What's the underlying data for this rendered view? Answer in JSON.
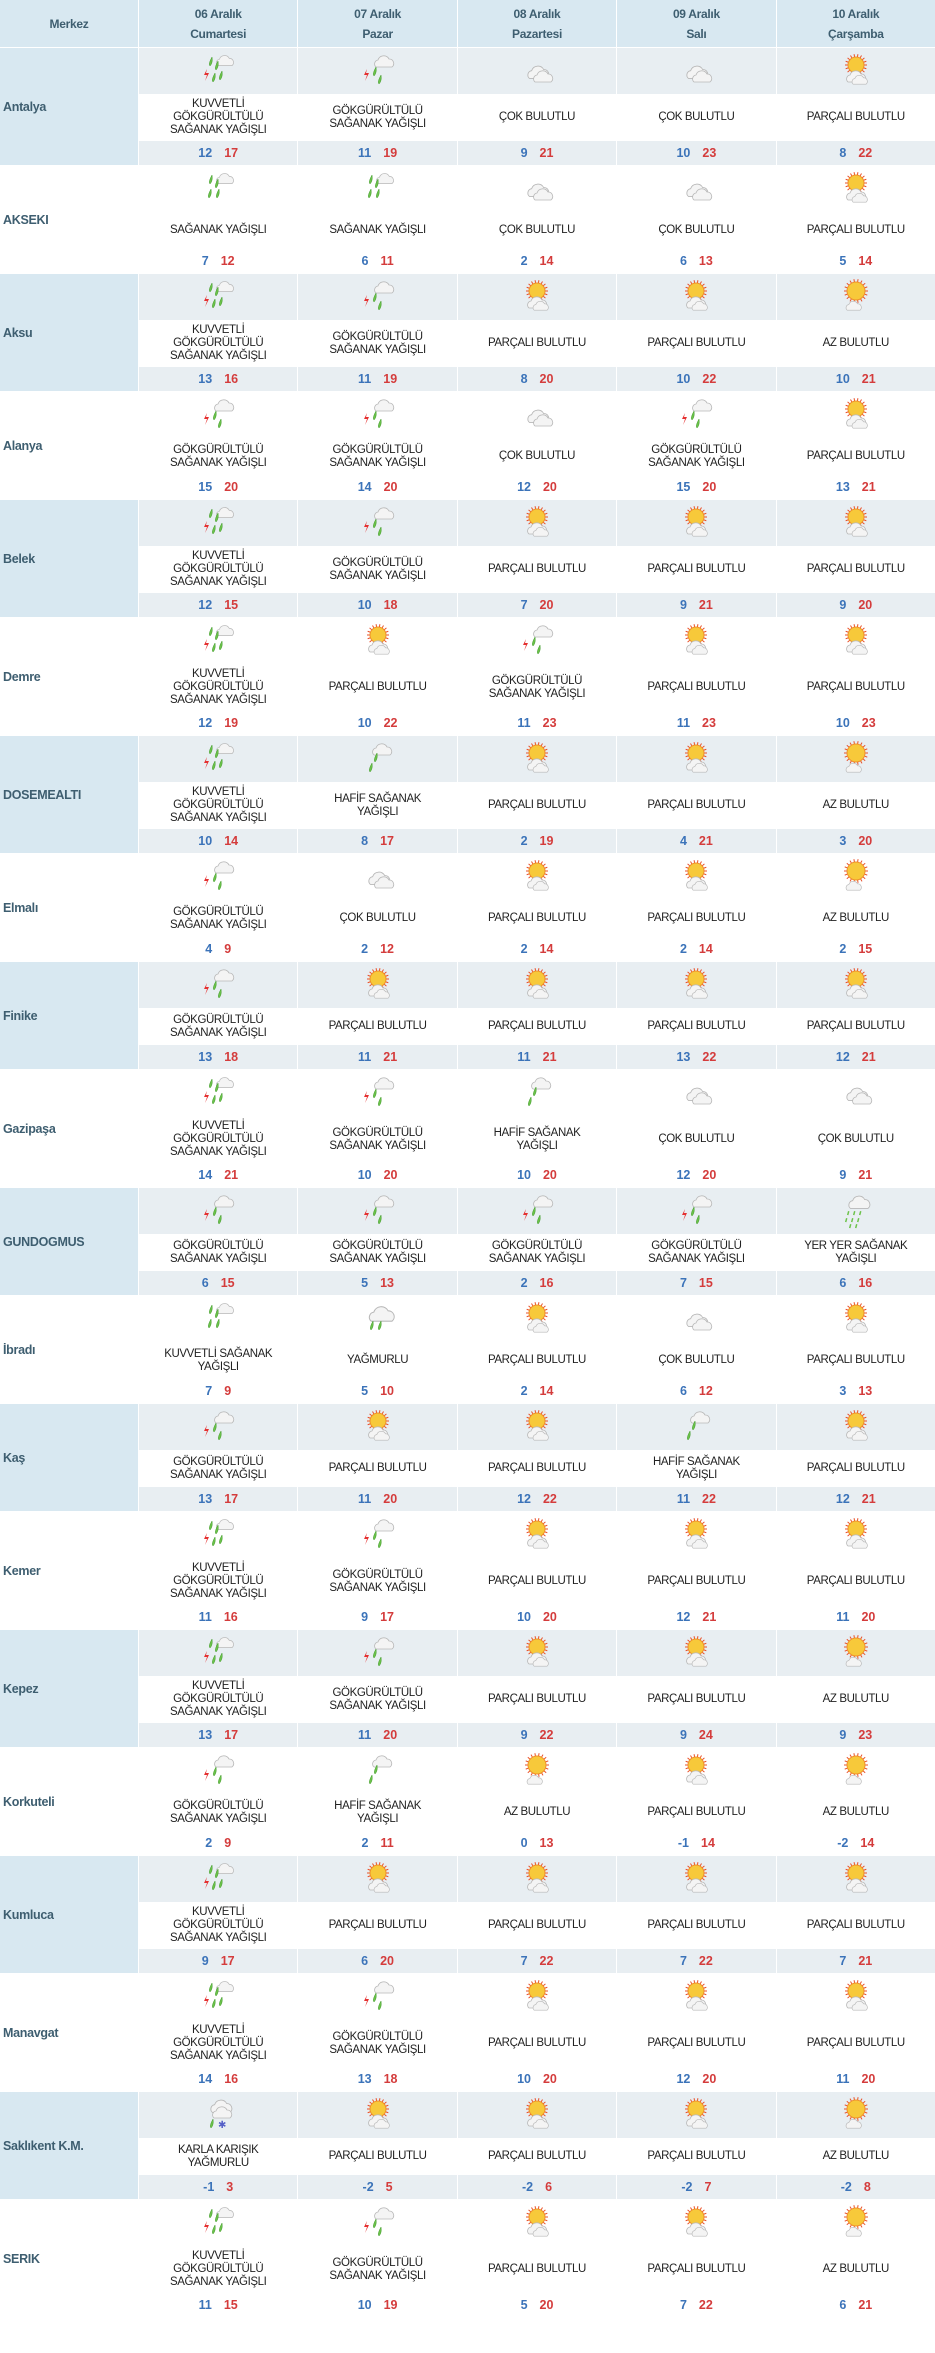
{
  "colors": {
    "header_bg": "#d8e8f1",
    "band_bg": "#e8eef2",
    "low": "#3b73b9",
    "high": "#d43c3c"
  },
  "header": {
    "merkez": "Merkez",
    "days": [
      {
        "date": "06 Aralık",
        "day": "Cumartesi"
      },
      {
        "date": "07 Aralık",
        "day": "Pazar"
      },
      {
        "date": "08 Aralık",
        "day": "Pazartesi"
      },
      {
        "date": "09 Aralık",
        "day": "Salı"
      },
      {
        "date": "10 Aralık",
        "day": "Çarşamba"
      }
    ]
  },
  "rows": [
    {
      "name": "Antalya",
      "f": [
        {
          "i": "storm-heavy",
          "d": "KUVVETLİ GÖKGÜRÜLTÜLÜ SAĞANAK YAĞIŞLI",
          "lo": "12",
          "hi": "17"
        },
        {
          "i": "storm",
          "d": "GÖKGÜRÜLTÜLÜ SAĞANAK YAĞIŞLI",
          "lo": "11",
          "hi": "19"
        },
        {
          "i": "cloudy",
          "d": "ÇOK BULUTLU",
          "lo": "9",
          "hi": "21"
        },
        {
          "i": "cloudy",
          "d": "ÇOK BULUTLU",
          "lo": "10",
          "hi": "23"
        },
        {
          "i": "partly",
          "d": "PARÇALI BULUTLU",
          "lo": "8",
          "hi": "22"
        }
      ]
    },
    {
      "name": "AKSEKI",
      "f": [
        {
          "i": "shower",
          "d": "SAĞANAK YAĞIŞLI",
          "lo": "7",
          "hi": "12"
        },
        {
          "i": "shower",
          "d": "SAĞANAK YAĞIŞLI",
          "lo": "6",
          "hi": "11"
        },
        {
          "i": "cloudy",
          "d": "ÇOK BULUTLU",
          "lo": "2",
          "hi": "14"
        },
        {
          "i": "cloudy",
          "d": "ÇOK BULUTLU",
          "lo": "6",
          "hi": "13"
        },
        {
          "i": "partly",
          "d": "PARÇALI BULUTLU",
          "lo": "5",
          "hi": "14"
        }
      ]
    },
    {
      "name": "Aksu",
      "f": [
        {
          "i": "storm-heavy",
          "d": "KUVVETLİ GÖKGÜRÜLTÜLÜ SAĞANAK YAĞIŞLI",
          "lo": "13",
          "hi": "16"
        },
        {
          "i": "storm",
          "d": "GÖKGÜRÜLTÜLÜ SAĞANAK YAĞIŞLI",
          "lo": "11",
          "hi": "19"
        },
        {
          "i": "partly",
          "d": "PARÇALI BULUTLU",
          "lo": "8",
          "hi": "20"
        },
        {
          "i": "partly",
          "d": "PARÇALI BULUTLU",
          "lo": "10",
          "hi": "22"
        },
        {
          "i": "few",
          "d": "AZ BULUTLU",
          "lo": "10",
          "hi": "21"
        }
      ]
    },
    {
      "name": "Alanya",
      "f": [
        {
          "i": "storm",
          "d": "GÖKGÜRÜLTÜLÜ SAĞANAK YAĞIŞLI",
          "lo": "15",
          "hi": "20"
        },
        {
          "i": "storm",
          "d": "GÖKGÜRÜLTÜLÜ SAĞANAK YAĞIŞLI",
          "lo": "14",
          "hi": "20"
        },
        {
          "i": "cloudy",
          "d": "ÇOK BULUTLU",
          "lo": "12",
          "hi": "20"
        },
        {
          "i": "storm",
          "d": "GÖKGÜRÜLTÜLÜ SAĞANAK YAĞIŞLI",
          "lo": "15",
          "hi": "20"
        },
        {
          "i": "partly",
          "d": "PARÇALI BULUTLU",
          "lo": "13",
          "hi": "21"
        }
      ]
    },
    {
      "name": "Belek",
      "f": [
        {
          "i": "storm-heavy",
          "d": "KUVVETLİ GÖKGÜRÜLTÜLÜ SAĞANAK YAĞIŞLI",
          "lo": "12",
          "hi": "15"
        },
        {
          "i": "storm",
          "d": "GÖKGÜRÜLTÜLÜ SAĞANAK YAĞIŞLI",
          "lo": "10",
          "hi": "18"
        },
        {
          "i": "partly",
          "d": "PARÇALI BULUTLU",
          "lo": "7",
          "hi": "20"
        },
        {
          "i": "partly",
          "d": "PARÇALI BULUTLU",
          "lo": "9",
          "hi": "21"
        },
        {
          "i": "partly",
          "d": "PARÇALI BULUTLU",
          "lo": "9",
          "hi": "20"
        }
      ]
    },
    {
      "name": "Demre",
      "f": [
        {
          "i": "storm-heavy",
          "d": "KUVVETLİ GÖKGÜRÜLTÜLÜ SAĞANAK YAĞIŞLI",
          "lo": "12",
          "hi": "19"
        },
        {
          "i": "partly",
          "d": "PARÇALI BULUTLU",
          "lo": "10",
          "hi": "22"
        },
        {
          "i": "storm",
          "d": "GÖKGÜRÜLTÜLÜ SAĞANAK YAĞIŞLI",
          "lo": "11",
          "hi": "23"
        },
        {
          "i": "partly",
          "d": "PARÇALI BULUTLU",
          "lo": "11",
          "hi": "23"
        },
        {
          "i": "partly",
          "d": "PARÇALI BULUTLU",
          "lo": "10",
          "hi": "23"
        }
      ]
    },
    {
      "name": "DOSEMEALTI",
      "f": [
        {
          "i": "storm-heavy",
          "d": "KUVVETLİ GÖKGÜRÜLTÜLÜ SAĞANAK YAĞIŞLI",
          "lo": "10",
          "hi": "14"
        },
        {
          "i": "light-shower",
          "d": "HAFİF SAĞANAK YAĞIŞLI",
          "lo": "8",
          "hi": "17"
        },
        {
          "i": "partly",
          "d": "PARÇALI BULUTLU",
          "lo": "2",
          "hi": "19"
        },
        {
          "i": "partly",
          "d": "PARÇALI BULUTLU",
          "lo": "4",
          "hi": "21"
        },
        {
          "i": "few",
          "d": "AZ BULUTLU",
          "lo": "3",
          "hi": "20"
        }
      ]
    },
    {
      "name": "Elmalı",
      "f": [
        {
          "i": "storm",
          "d": "GÖKGÜRÜLTÜLÜ SAĞANAK YAĞIŞLI",
          "lo": "4",
          "hi": "9"
        },
        {
          "i": "cloudy",
          "d": "ÇOK BULUTLU",
          "lo": "2",
          "hi": "12"
        },
        {
          "i": "partly",
          "d": "PARÇALI BULUTLU",
          "lo": "2",
          "hi": "14"
        },
        {
          "i": "partly",
          "d": "PARÇALI BULUTLU",
          "lo": "2",
          "hi": "14"
        },
        {
          "i": "few",
          "d": "AZ BULUTLU",
          "lo": "2",
          "hi": "15"
        }
      ]
    },
    {
      "name": "Finike",
      "f": [
        {
          "i": "storm",
          "d": "GÖKGÜRÜLTÜLÜ SAĞANAK YAĞIŞLI",
          "lo": "13",
          "hi": "18"
        },
        {
          "i": "partly",
          "d": "PARÇALI BULUTLU",
          "lo": "11",
          "hi": "21"
        },
        {
          "i": "partly",
          "d": "PARÇALI BULUTLU",
          "lo": "11",
          "hi": "21"
        },
        {
          "i": "partly",
          "d": "PARÇALI BULUTLU",
          "lo": "13",
          "hi": "22"
        },
        {
          "i": "partly",
          "d": "PARÇALI BULUTLU",
          "lo": "12",
          "hi": "21"
        }
      ]
    },
    {
      "name": "Gazipaşa",
      "f": [
        {
          "i": "storm-heavy",
          "d": "KUVVETLİ GÖKGÜRÜLTÜLÜ SAĞANAK YAĞIŞLI",
          "lo": "14",
          "hi": "21"
        },
        {
          "i": "storm",
          "d": "GÖKGÜRÜLTÜLÜ SAĞANAK YAĞIŞLI",
          "lo": "10",
          "hi": "20"
        },
        {
          "i": "light-shower",
          "d": "HAFİF SAĞANAK YAĞIŞLI",
          "lo": "10",
          "hi": "20"
        },
        {
          "i": "cloudy",
          "d": "ÇOK BULUTLU",
          "lo": "12",
          "hi": "20"
        },
        {
          "i": "cloudy",
          "d": "ÇOK BULUTLU",
          "lo": "9",
          "hi": "21"
        }
      ]
    },
    {
      "name": "GUNDOGMUS",
      "f": [
        {
          "i": "storm",
          "d": "GÖKGÜRÜLTÜLÜ SAĞANAK YAĞIŞLI",
          "lo": "6",
          "hi": "15"
        },
        {
          "i": "storm",
          "d": "GÖKGÜRÜLTÜLÜ SAĞANAK YAĞIŞLI",
          "lo": "5",
          "hi": "13"
        },
        {
          "i": "storm",
          "d": "GÖKGÜRÜLTÜLÜ SAĞANAK YAĞIŞLI",
          "lo": "2",
          "hi": "16"
        },
        {
          "i": "storm",
          "d": "GÖKGÜRÜLTÜLÜ SAĞANAK YAĞIŞLI",
          "lo": "7",
          "hi": "15"
        },
        {
          "i": "scattered-shower",
          "d": "YER YER SAĞANAK YAĞIŞLI",
          "lo": "6",
          "hi": "16"
        }
      ]
    },
    {
      "name": "İbradı",
      "f": [
        {
          "i": "shower-heavy",
          "d": "KUVVETLİ SAĞANAK YAĞIŞLI",
          "lo": "7",
          "hi": "9"
        },
        {
          "i": "rain",
          "d": "YAĞMURLU",
          "lo": "5",
          "hi": "10"
        },
        {
          "i": "partly",
          "d": "PARÇALI BULUTLU",
          "lo": "2",
          "hi": "14"
        },
        {
          "i": "cloudy",
          "d": "ÇOK BULUTLU",
          "lo": "6",
          "hi": "12"
        },
        {
          "i": "partly",
          "d": "PARÇALI BULUTLU",
          "lo": "3",
          "hi": "13"
        }
      ]
    },
    {
      "name": "Kaş",
      "f": [
        {
          "i": "storm",
          "d": "GÖKGÜRÜLTÜLÜ SAĞANAK YAĞIŞLI",
          "lo": "13",
          "hi": "17"
        },
        {
          "i": "partly",
          "d": "PARÇALI BULUTLU",
          "lo": "11",
          "hi": "20"
        },
        {
          "i": "partly",
          "d": "PARÇALI BULUTLU",
          "lo": "12",
          "hi": "22"
        },
        {
          "i": "light-shower",
          "d": "HAFİF SAĞANAK YAĞIŞLI",
          "lo": "11",
          "hi": "22"
        },
        {
          "i": "partly",
          "d": "PARÇALI BULUTLU",
          "lo": "12",
          "hi": "21"
        }
      ]
    },
    {
      "name": "Kemer",
      "f": [
        {
          "i": "storm-heavy",
          "d": "KUVVETLİ GÖKGÜRÜLTÜLÜ SAĞANAK YAĞIŞLI",
          "lo": "11",
          "hi": "16"
        },
        {
          "i": "storm",
          "d": "GÖKGÜRÜLTÜLÜ SAĞANAK YAĞIŞLI",
          "lo": "9",
          "hi": "17"
        },
        {
          "i": "partly",
          "d": "PARÇALI BULUTLU",
          "lo": "10",
          "hi": "20"
        },
        {
          "i": "partly",
          "d": "PARÇALI BULUTLU",
          "lo": "12",
          "hi": "21"
        },
        {
          "i": "partly",
          "d": "PARÇALI BULUTLU",
          "lo": "11",
          "hi": "20"
        }
      ]
    },
    {
      "name": "Kepez",
      "f": [
        {
          "i": "storm-heavy",
          "d": "KUVVETLİ GÖKGÜRÜLTÜLÜ SAĞANAK YAĞIŞLI",
          "lo": "13",
          "hi": "17"
        },
        {
          "i": "storm",
          "d": "GÖKGÜRÜLTÜLÜ SAĞANAK YAĞIŞLI",
          "lo": "11",
          "hi": "20"
        },
        {
          "i": "partly",
          "d": "PARÇALI BULUTLU",
          "lo": "9",
          "hi": "22"
        },
        {
          "i": "partly",
          "d": "PARÇALI BULUTLU",
          "lo": "9",
          "hi": "24"
        },
        {
          "i": "few",
          "d": "AZ BULUTLU",
          "lo": "9",
          "hi": "23"
        }
      ]
    },
    {
      "name": "Korkuteli",
      "f": [
        {
          "i": "storm",
          "d": "GÖKGÜRÜLTÜLÜ SAĞANAK YAĞIŞLI",
          "lo": "2",
          "hi": "9"
        },
        {
          "i": "light-shower",
          "d": "HAFİF SAĞANAK YAĞIŞLI",
          "lo": "2",
          "hi": "11"
        },
        {
          "i": "few",
          "d": "AZ BULUTLU",
          "lo": "0",
          "hi": "13"
        },
        {
          "i": "partly",
          "d": "PARÇALI BULUTLU",
          "lo": "-1",
          "hi": "14"
        },
        {
          "i": "few",
          "d": "AZ BULUTLU",
          "lo": "-2",
          "hi": "14"
        }
      ]
    },
    {
      "name": "Kumluca",
      "f": [
        {
          "i": "storm-heavy",
          "d": "KUVVETLİ GÖKGÜRÜLTÜLÜ SAĞANAK YAĞIŞLI",
          "lo": "9",
          "hi": "17"
        },
        {
          "i": "partly",
          "d": "PARÇALI BULUTLU",
          "lo": "6",
          "hi": "20"
        },
        {
          "i": "partly",
          "d": "PARÇALI BULUTLU",
          "lo": "7",
          "hi": "22"
        },
        {
          "i": "partly",
          "d": "PARÇALI BULUTLU",
          "lo": "7",
          "hi": "22"
        },
        {
          "i": "partly",
          "d": "PARÇALI BULUTLU",
          "lo": "7",
          "hi": "21"
        }
      ]
    },
    {
      "name": "Manavgat",
      "f": [
        {
          "i": "storm-heavy",
          "d": "KUVVETLİ GÖKGÜRÜLTÜLÜ SAĞANAK YAĞIŞLI",
          "lo": "14",
          "hi": "16"
        },
        {
          "i": "storm",
          "d": "GÖKGÜRÜLTÜLÜ SAĞANAK YAĞIŞLI",
          "lo": "13",
          "hi": "18"
        },
        {
          "i": "partly",
          "d": "PARÇALI BULUTLU",
          "lo": "10",
          "hi": "20"
        },
        {
          "i": "partly",
          "d": "PARÇALI BULUTLU",
          "lo": "12",
          "hi": "20"
        },
        {
          "i": "partly",
          "d": "PARÇALI BULUTLU",
          "lo": "11",
          "hi": "20"
        }
      ]
    },
    {
      "name": "Saklıkent K.M.",
      "f": [
        {
          "i": "sleet",
          "d": "KARLA KARIŞIK YAĞMURLU",
          "lo": "-1",
          "hi": "3"
        },
        {
          "i": "partly",
          "d": "PARÇALI BULUTLU",
          "lo": "-2",
          "hi": "5"
        },
        {
          "i": "partly",
          "d": "PARÇALI BULUTLU",
          "lo": "-2",
          "hi": "6"
        },
        {
          "i": "partly",
          "d": "PARÇALI BULUTLU",
          "lo": "-2",
          "hi": "7"
        },
        {
          "i": "few",
          "d": "AZ BULUTLU",
          "lo": "-2",
          "hi": "8"
        }
      ]
    },
    {
      "name": "SERIK",
      "f": [
        {
          "i": "storm-heavy",
          "d": "KUVVETLİ GÖKGÜRÜLTÜLÜ SAĞANAK YAĞIŞLI",
          "lo": "11",
          "hi": "15"
        },
        {
          "i": "storm",
          "d": "GÖKGÜRÜLTÜLÜ SAĞANAK YAĞIŞLI",
          "lo": "10",
          "hi": "19"
        },
        {
          "i": "partly",
          "d": "PARÇALI BULUTLU",
          "lo": "5",
          "hi": "20"
        },
        {
          "i": "partly",
          "d": "PARÇALI BULUTLU",
          "lo": "7",
          "hi": "22"
        },
        {
          "i": "few",
          "d": "AZ BULUTLU",
          "lo": "6",
          "hi": "21"
        }
      ]
    }
  ]
}
